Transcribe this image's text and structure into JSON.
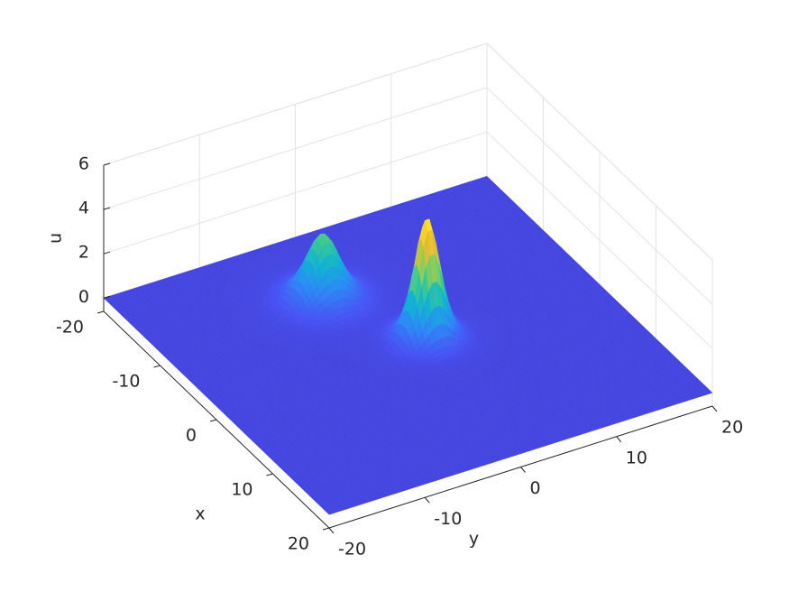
{
  "chart_data": {
    "type": "surface",
    "xlabel": "x",
    "ylabel": "y",
    "zlabel": "u",
    "xlim": [
      -20,
      20
    ],
    "ylim": [
      -20,
      20
    ],
    "zlim": [
      -0.6,
      6
    ],
    "xticks": [
      -20,
      -10,
      0,
      10,
      20
    ],
    "yticks": [
      -20,
      -10,
      0,
      10,
      20
    ],
    "zticks": [
      0,
      2,
      4,
      6
    ],
    "grid": true,
    "colormap": "parula",
    "peaks": [
      {
        "x": 0,
        "y": 2,
        "u": 5.5,
        "spread": 1.6
      },
      {
        "x": -10,
        "y": -3,
        "u": 3,
        "spread": 2.2
      }
    ]
  }
}
